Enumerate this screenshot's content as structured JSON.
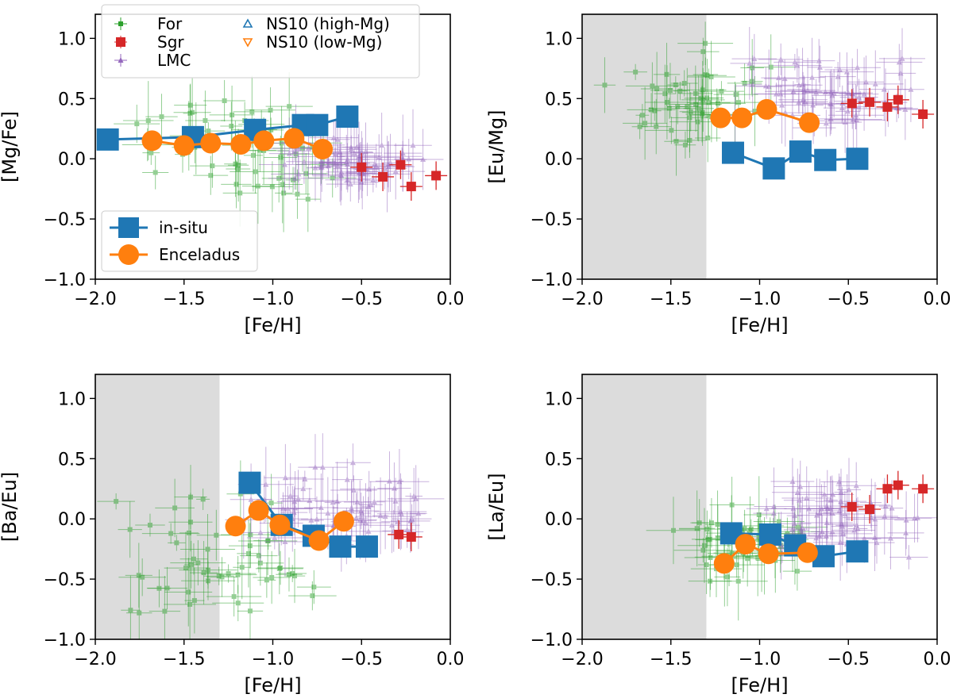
{
  "figure": {
    "title": ""
  },
  "legend_top": {
    "col1": [
      {
        "name": "For",
        "color": "#2ca02c",
        "marker": "square-small"
      },
      {
        "name": "Sgr",
        "color": "#d62728",
        "marker": "square"
      },
      {
        "name": "LMC",
        "color": "#9467bd",
        "marker": "triangle-small"
      }
    ],
    "col2": [
      {
        "name": "NS10 (high-Mg)",
        "color": "#1f77b4",
        "marker": "triangle-up-open"
      },
      {
        "name": "NS10 (low-Mg)",
        "color": "#ff7f0e",
        "marker": "triangle-down-open"
      }
    ]
  },
  "legend_bottom": [
    {
      "name": "in-situ",
      "color": "#1f77b4",
      "marker": "square-large"
    },
    {
      "name": "Enceladus",
      "color": "#ff7f0e",
      "marker": "circle-large"
    }
  ],
  "chart_data": [
    {
      "type": "scatter",
      "ylabel": "[Mg/Fe]",
      "xlabel": "[Fe/H]",
      "xlim": [
        -2.0,
        0.0
      ],
      "ylim": [
        -1.0,
        1.2
      ],
      "xticks": [
        "−2.0",
        "−1.5",
        "−1.0",
        "−0.5",
        "0.0"
      ],
      "yticks": [
        "−1.0",
        "−0.5",
        "0.0",
        "0.5",
        "1.0"
      ],
      "shade_xmax": null,
      "series": [
        {
          "name": "in-situ",
          "x": [
            -1.93,
            -1.45,
            -1.1,
            -0.83,
            -0.75,
            -0.58
          ],
          "y": [
            0.16,
            0.18,
            0.24,
            0.28,
            0.28,
            0.35
          ]
        },
        {
          "name": "Enceladus",
          "x": [
            -1.68,
            -1.5,
            -1.35,
            -1.18,
            -1.05,
            -0.88,
            -0.72
          ],
          "y": [
            0.15,
            0.11,
            0.13,
            0.12,
            0.15,
            0.17,
            0.08
          ]
        },
        {
          "name": "Sgr",
          "x": [
            -0.5,
            -0.38,
            -0.28,
            -0.22,
            -0.08
          ],
          "y": [
            -0.07,
            -0.15,
            -0.05,
            -0.23,
            -0.14
          ]
        }
      ],
      "scatter_clouds": {
        "For": {
          "x_range": [
            -1.95,
            -0.45
          ],
          "y_range": [
            -0.45,
            0.55
          ]
        },
        "LMC": {
          "x_range": [
            -1.0,
            -0.1
          ],
          "y_range": [
            -0.25,
            0.2
          ]
        }
      }
    },
    {
      "type": "scatter",
      "ylabel": "[Eu/Mg]",
      "xlabel": "[Fe/H]",
      "xlim": [
        -2.0,
        0.0
      ],
      "ylim": [
        -1.0,
        1.2
      ],
      "xticks": [
        "−2.0",
        "−1.5",
        "−1.0",
        "−0.5",
        "0.0"
      ],
      "yticks": [
        "−1.0",
        "−0.5",
        "0.0",
        "0.5",
        "1.0"
      ],
      "shade_xmax": -1.3,
      "series": [
        {
          "name": "in-situ",
          "x": [
            -1.15,
            -0.92,
            -0.77,
            -0.63,
            -0.45
          ],
          "y": [
            0.05,
            -0.08,
            0.06,
            -0.01,
            0.0
          ]
        },
        {
          "name": "Enceladus",
          "x": [
            -1.22,
            -1.1,
            -0.96,
            -0.72
          ],
          "y": [
            0.34,
            0.34,
            0.41,
            0.3
          ]
        },
        {
          "name": "Sgr",
          "x": [
            -0.48,
            -0.38,
            -0.28,
            -0.22,
            -0.08
          ],
          "y": [
            0.46,
            0.47,
            0.43,
            0.49,
            0.37
          ]
        }
      ],
      "scatter_clouds": {
        "For": {
          "x_range": [
            -1.95,
            -0.9
          ],
          "y_range": [
            0.05,
            1.0
          ]
        },
        "LMC": {
          "x_range": [
            -1.15,
            -0.05
          ],
          "y_range": [
            0.2,
            0.9
          ]
        }
      }
    },
    {
      "type": "scatter",
      "ylabel": "[Ba/Eu]",
      "xlabel": "[Fe/H]",
      "xlim": [
        -2.0,
        0.0
      ],
      "ylim": [
        -1.0,
        1.2
      ],
      "xticks": [
        "−2.0",
        "−1.5",
        "−1.0",
        "−0.5",
        "0.0"
      ],
      "yticks": [
        "−1.0",
        "−0.5",
        "0.0",
        "0.5",
        "1.0"
      ],
      "shade_xmax": -1.3,
      "series": [
        {
          "name": "in-situ",
          "x": [
            -1.13,
            -0.95,
            -0.77,
            -0.62,
            -0.47
          ],
          "y": [
            0.3,
            -0.05,
            -0.14,
            -0.23,
            -0.23
          ]
        },
        {
          "name": "Enceladus",
          "x": [
            -1.21,
            -1.08,
            -0.96,
            -0.74,
            -0.6
          ],
          "y": [
            -0.06,
            0.07,
            -0.05,
            -0.18,
            -0.02
          ]
        },
        {
          "name": "Sgr",
          "x": [
            -0.29,
            -0.22
          ],
          "y": [
            -0.13,
            -0.15
          ]
        }
      ],
      "scatter_clouds": {
        "For": {
          "x_range": [
            -1.95,
            -0.7
          ],
          "y_range": [
            -0.95,
            0.3
          ]
        },
        "LMC": {
          "x_range": [
            -1.2,
            -0.05
          ],
          "y_range": [
            -0.35,
            0.55
          ]
        }
      }
    },
    {
      "type": "scatter",
      "ylabel": "[La/Eu]",
      "xlabel": "[Fe/H]",
      "xlim": [
        -2.0,
        0.0
      ],
      "ylim": [
        -1.0,
        1.2
      ],
      "xticks": [
        "−2.0",
        "−1.5",
        "−1.0",
        "−0.5",
        "0.0"
      ],
      "yticks": [
        "−1.0",
        "−0.5",
        "0.0",
        "0.5",
        "1.0"
      ],
      "shade_xmax": -1.3,
      "series": [
        {
          "name": "in-situ",
          "x": [
            -1.16,
            -0.94,
            -0.8,
            -0.64,
            -0.45
          ],
          "y": [
            -0.12,
            -0.13,
            -0.22,
            -0.31,
            -0.27
          ]
        },
        {
          "name": "Enceladus",
          "x": [
            -1.2,
            -1.08,
            -0.95,
            -0.73
          ],
          "y": [
            -0.37,
            -0.21,
            -0.29,
            -0.28
          ]
        },
        {
          "name": "Sgr",
          "x": [
            -0.48,
            -0.38,
            -0.28,
            -0.22,
            -0.08
          ],
          "y": [
            0.1,
            0.08,
            0.25,
            0.28,
            0.25
          ]
        }
      ],
      "scatter_clouds": {
        "For": {
          "x_range": [
            -1.55,
            -0.7
          ],
          "y_range": [
            -0.6,
            0.15
          ]
        },
        "LMC": {
          "x_range": [
            -1.2,
            -0.05
          ],
          "y_range": [
            -0.45,
            0.45
          ]
        }
      }
    }
  ]
}
